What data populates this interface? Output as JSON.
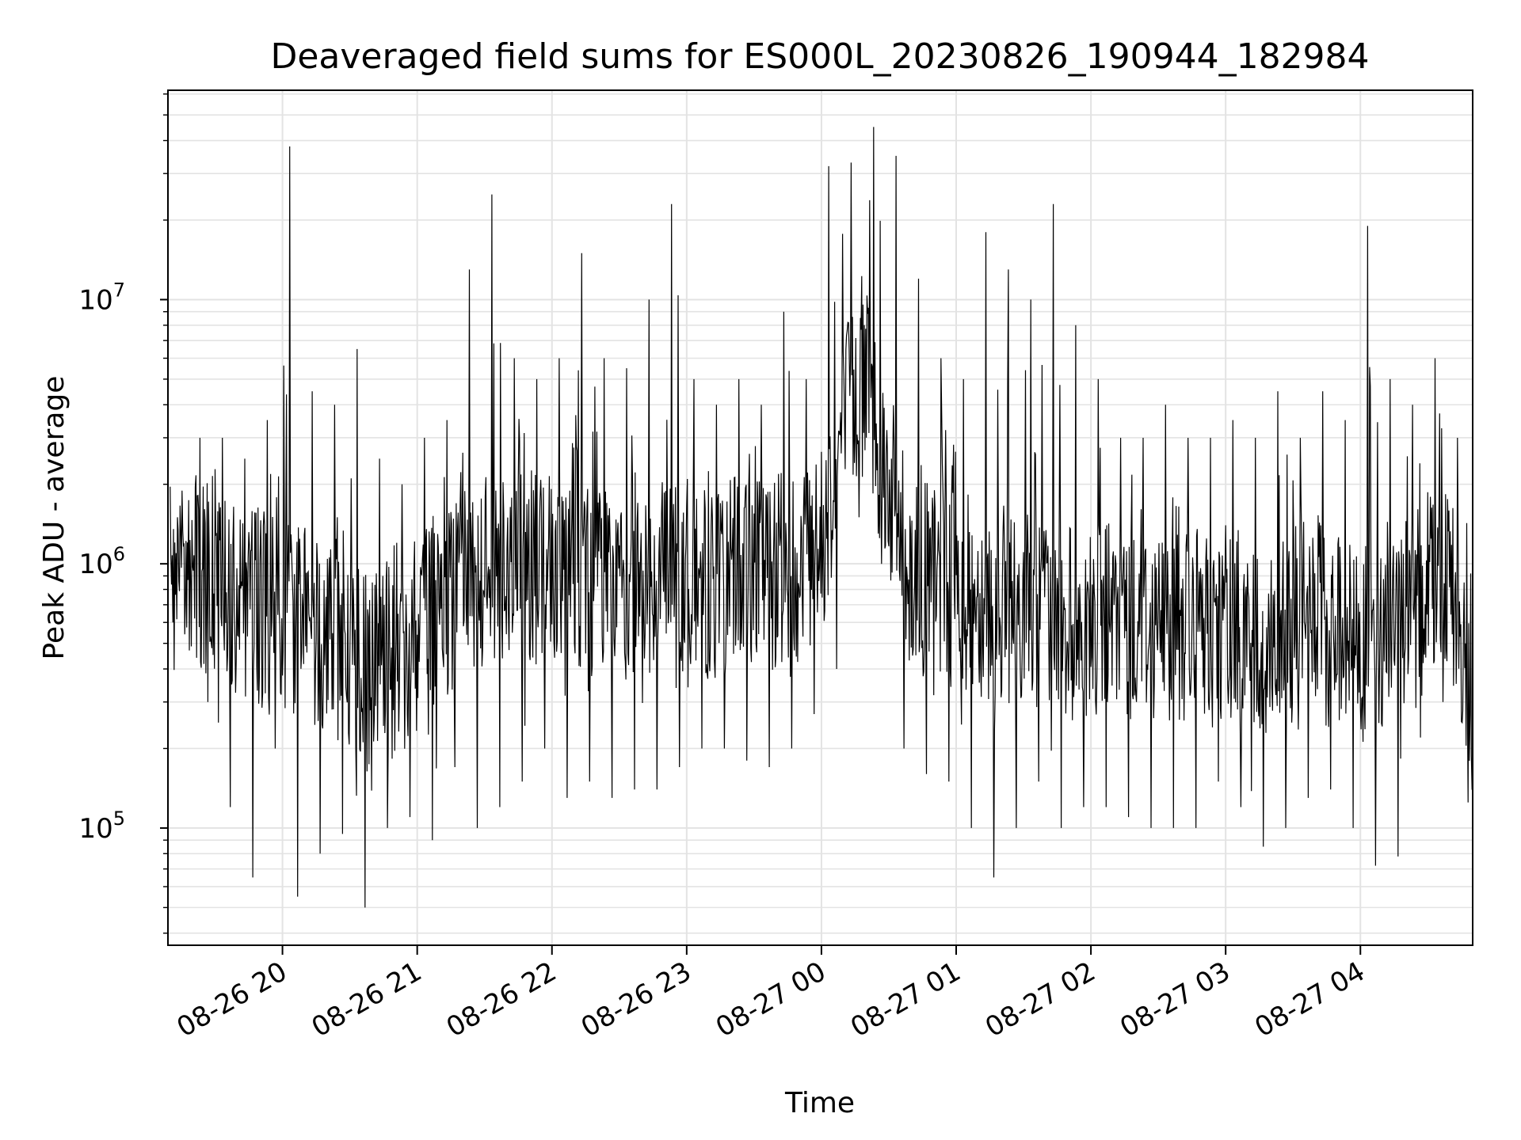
{
  "chart_data": {
    "type": "line",
    "title": "Deaveraged field sums for ES000L_20230826_190944_182984",
    "xlabel": "Time",
    "ylabel": "Peak ADU - average",
    "y_scale": "log",
    "grid": true,
    "legend": "none",
    "line_color": "#000000",
    "xlim": [
      "08-26 19:09",
      "08-27 04:50"
    ],
    "ylim": [
      36000,
      62000000
    ],
    "x_ticks": [
      "08-26 20",
      "08-26 21",
      "08-26 22",
      "08-26 23",
      "08-27 00",
      "08-27 01",
      "08-27 02",
      "08-27 03",
      "08-27 04"
    ],
    "y_ticks": [
      {
        "value": 100000,
        "base": "10",
        "exp": "5"
      },
      {
        "value": 1000000,
        "base": "10",
        "exp": "6"
      },
      {
        "value": 10000000,
        "base": "10",
        "exp": "7"
      }
    ],
    "x": [
      "08-26 19:10",
      "08-26 19:20",
      "08-26 19:30",
      "08-26 19:40",
      "08-26 19:50",
      "08-26 20:00",
      "08-26 20:10",
      "08-26 20:20",
      "08-26 20:30",
      "08-26 20:40",
      "08-26 20:50",
      "08-26 21:00",
      "08-26 21:10",
      "08-26 21:20",
      "08-26 21:30",
      "08-26 21:40",
      "08-26 21:50",
      "08-26 22:00",
      "08-26 22:10",
      "08-26 22:20",
      "08-26 22:30",
      "08-26 22:40",
      "08-26 22:50",
      "08-26 23:00",
      "08-26 23:10",
      "08-26 23:20",
      "08-26 23:30",
      "08-26 23:40",
      "08-26 23:50",
      "08-27 00:00",
      "08-27 00:10",
      "08-27 00:20",
      "08-27 00:30",
      "08-27 00:40",
      "08-27 00:50",
      "08-27 01:00",
      "08-27 01:10",
      "08-27 01:20",
      "08-27 01:30",
      "08-27 01:40",
      "08-27 01:50",
      "08-27 02:00",
      "08-27 02:10",
      "08-27 02:20",
      "08-27 02:30",
      "08-27 02:40",
      "08-27 02:50",
      "08-27 03:00",
      "08-27 03:10",
      "08-27 03:20",
      "08-27 03:30",
      "08-27 03:40",
      "08-27 03:50",
      "08-27 04:00",
      "08-27 04:10",
      "08-27 04:20",
      "08-27 04:30",
      "08-27 04:40",
      "08-27 04:50"
    ],
    "series": [
      {
        "median": [
          900000,
          1000000,
          800000,
          700000,
          700000,
          650000,
          600000,
          550000,
          450000,
          400000,
          400000,
          550000,
          700000,
          800000,
          900000,
          950000,
          1000000,
          900000,
          850000,
          800000,
          850000,
          900000,
          950000,
          900000,
          850000,
          900000,
          900000,
          950000,
          1000000,
          1200000,
          3500000,
          5000000,
          2000000,
          900000,
          850000,
          800000,
          750000,
          700000,
          700000,
          650000,
          600000,
          600000,
          600000,
          600000,
          600000,
          600000,
          600000,
          600000,
          550000,
          500000,
          600000,
          650000,
          600000,
          500000,
          500000,
          700000,
          900000,
          1000000,
          200000
        ],
        "high": [
          1500000,
          3000000,
          3000000,
          2500000,
          3500000,
          38000000,
          4500000,
          4000000,
          6500000,
          2500000,
          2000000,
          3000000,
          3500000,
          13000000,
          25000000,
          6000000,
          5000000,
          6000000,
          15000000,
          6000000,
          5500000,
          10000000,
          23000000,
          5000000,
          4000000,
          5000000,
          4000000,
          9000000,
          5000000,
          32000000,
          33000000,
          45000000,
          35000000,
          12000000,
          6000000,
          5000000,
          18000000,
          13000000,
          10000000,
          23000000,
          8000000,
          5000000,
          3000000,
          3000000,
          4000000,
          3000000,
          3000000,
          3500000,
          3000000,
          4500000,
          3000000,
          4500000,
          3500000,
          19000000,
          5000000,
          4000000,
          6000000,
          3000000,
          500000
        ],
        "low": [
          700000,
          300000,
          120000,
          65000,
          200000,
          55000,
          80000,
          95000,
          50000,
          100000,
          110000,
          90000,
          170000,
          100000,
          120000,
          150000,
          200000,
          130000,
          150000,
          130000,
          140000,
          140000,
          170000,
          200000,
          200000,
          180000,
          170000,
          200000,
          270000,
          400000,
          1500000,
          1000000,
          200000,
          160000,
          150000,
          100000,
          65000,
          100000,
          150000,
          100000,
          120000,
          120000,
          110000,
          100000,
          100000,
          100000,
          150000,
          120000,
          85000,
          100000,
          130000,
          140000,
          100000,
          72000,
          78000,
          220000,
          300000,
          500000,
          90000
        ]
      }
    ]
  }
}
